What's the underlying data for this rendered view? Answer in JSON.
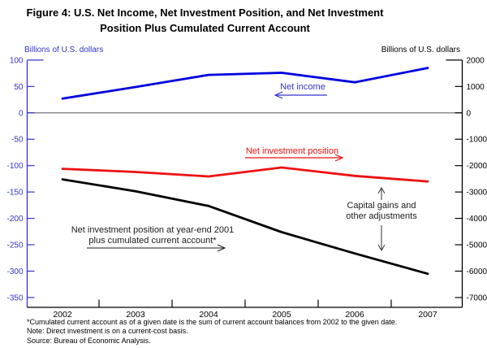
{
  "title": {
    "line1": "Figure 4:  U.S. Net Income, Net Investment Position, and Net Investment",
    "line2": "Position Plus Cumulated Current Account"
  },
  "axes": {
    "left": {
      "label": "Billions of U.S. dollars",
      "color": "#3333cc",
      "ticks": [
        100,
        50,
        0,
        -50,
        -100,
        -150,
        -200,
        -250,
        -300,
        -350
      ]
    },
    "right": {
      "label": "Billions of U.S. dollars",
      "color": "#000000",
      "ticks": [
        2000,
        1000,
        0,
        -1000,
        -2000,
        -3000,
        -4000,
        -5000,
        -6000,
        -7000
      ]
    },
    "x": {
      "years": [
        "2002",
        "2003",
        "2004",
        "2005",
        "2006",
        "2007"
      ]
    }
  },
  "chart_data": {
    "type": "line",
    "title": "Figure 4: U.S. Net Income, Net Investment Position, and Net Investment Position Plus Cumulated Current Account",
    "x": [
      2002,
      2003,
      2004,
      2005,
      2006,
      2007
    ],
    "series": [
      {
        "name": "Net income",
        "axis": "left",
        "units": "billions of U.S. dollars (left scale)",
        "color": "#0000e0",
        "values": [
          27,
          49,
          72,
          76,
          58,
          85
        ]
      },
      {
        "name": "Net investment position",
        "axis": "right",
        "units": "billions of U.S. dollars (right scale)",
        "color": "#ee1111",
        "values": [
          -2120,
          -2240,
          -2410,
          -2070,
          -2390,
          -2600
        ]
      },
      {
        "name": "Net investment position at year-end 2001 plus cumulated current account",
        "axis": "right",
        "units": "billions of U.S. dollars (right scale)",
        "color": "#000000",
        "values": [
          -2520,
          -2970,
          -3530,
          -4520,
          -5330,
          -6100
        ]
      }
    ],
    "left_ylim": [
      -350,
      100
    ],
    "right_ylim": [
      -7000,
      2000
    ],
    "grid": false,
    "zero_line": true,
    "legend_position": "inline-annotations"
  },
  "annotations": {
    "net_income": "Net income",
    "nip": "Net investment position",
    "capital_gains_line1": "Capital gains and",
    "capital_gains_line2": "other adjustments",
    "black_label_line1": "Net investment position at year-end 2001",
    "black_label_line2": "plus cumulated current account*"
  },
  "footnotes": [
    "*Cumulated current account as of a given date is the sum of current account balances from 2002 to the given date.",
    "Note: Direct investment is on a current-cost basis.",
    "Source: Bureau of Economic Analysis."
  ]
}
